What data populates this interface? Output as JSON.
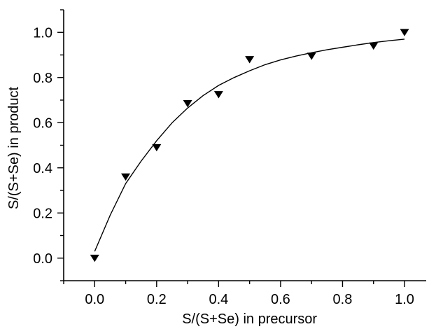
{
  "chart_data": {
    "type": "scatter",
    "xlabel": "S/(S+Se) in precursor",
    "ylabel": "S/(S+Se) in product",
    "xlim": [
      -0.1,
      1.07
    ],
    "ylim": [
      -0.1,
      1.1
    ],
    "x_ticks": [
      "0.0",
      "0.2",
      "0.4",
      "0.6",
      "0.8",
      "1.0"
    ],
    "y_ticks": [
      "0.0",
      "0.2",
      "0.4",
      "0.6",
      "0.8",
      "1.0"
    ],
    "grid": false,
    "legend": "none",
    "series": [
      {
        "marker": "down-triangle",
        "color": "#000000",
        "x": [
          0.0,
          0.1,
          0.2,
          0.3,
          0.4,
          0.5,
          0.7,
          0.9,
          1.0
        ],
        "y": [
          0.0,
          0.36,
          0.49,
          0.685,
          0.725,
          0.88,
          0.895,
          0.94,
          1.0
        ]
      }
    ],
    "fit_curve": {
      "color": "#000000",
      "x": [
        0.0,
        0.05,
        0.1,
        0.15,
        0.2,
        0.25,
        0.3,
        0.35,
        0.4,
        0.45,
        0.5,
        0.55,
        0.6,
        0.65,
        0.7,
        0.75,
        0.8,
        0.85,
        0.9,
        0.95,
        1.0
      ],
      "y": [
        0.03,
        0.19,
        0.33,
        0.43,
        0.52,
        0.6,
        0.665,
        0.72,
        0.765,
        0.8,
        0.83,
        0.857,
        0.878,
        0.895,
        0.91,
        0.923,
        0.934,
        0.945,
        0.955,
        0.963,
        0.97
      ]
    }
  }
}
